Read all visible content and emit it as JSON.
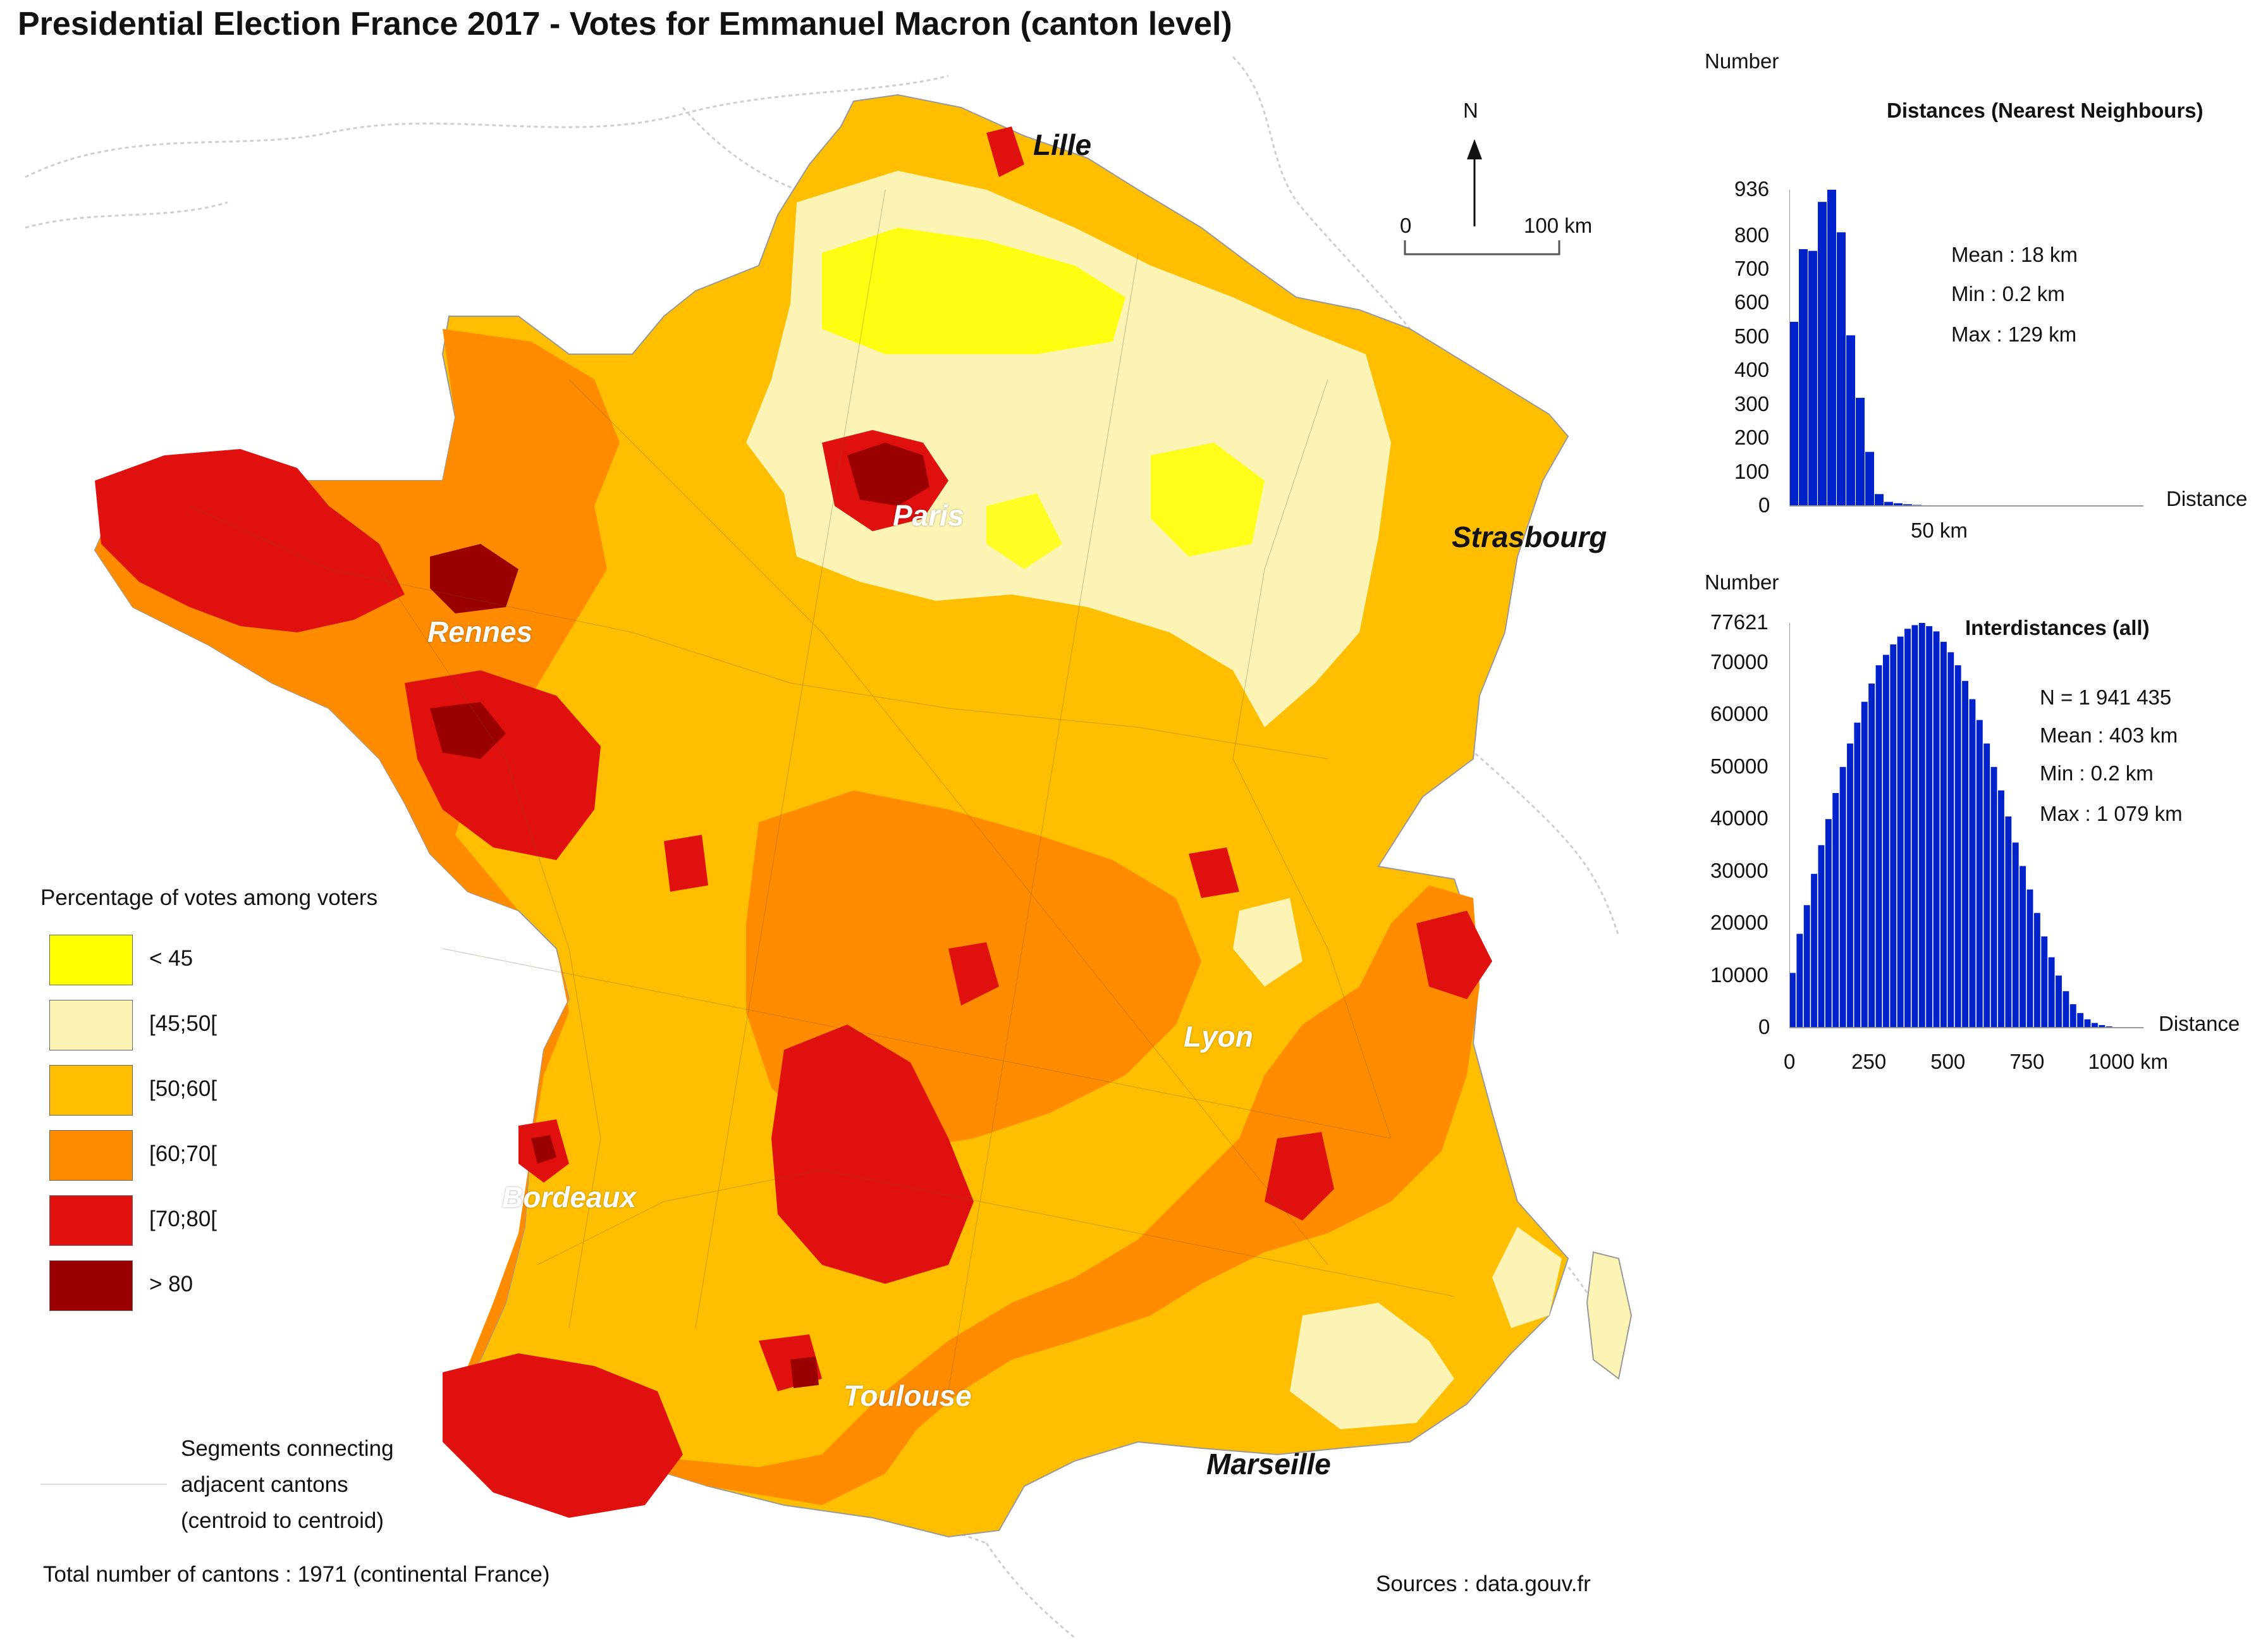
{
  "title": "Presidential Election France 2017 - Votes for Emmanuel Macron (canton level)",
  "colors": {
    "lt45": "#ffff00",
    "r45_50": "#fbf4b4",
    "r50_60": "#ffbf00",
    "r60_70": "#ff8c00",
    "r70_80": "#e0100f",
    "gt80": "#9a0000",
    "histogram_bars": "#0022cc"
  },
  "cities": {
    "lille": "Lille",
    "paris": "Paris",
    "strasbourg": "Strasbourg",
    "rennes": "Rennes",
    "lyon": "Lyon",
    "bordeaux": "Bordeaux",
    "toulouse": "Toulouse",
    "marseille": "Marseille"
  },
  "north_arrow": {
    "label": "N"
  },
  "scale_bar": {
    "start": "0",
    "end": "100 km"
  },
  "legend": {
    "title": "Percentage of votes among voters",
    "items": [
      {
        "label": "< 45",
        "color": "#ffff00"
      },
      {
        "label": "[45;50[",
        "color": "#fbf4b4"
      },
      {
        "label": "[50;60[",
        "color": "#ffbf00"
      },
      {
        "label": "[60;70[",
        "color": "#ff8c00"
      },
      {
        "label": "[70;80[",
        "color": "#e0100f"
      },
      {
        "label": "> 80",
        "color": "#9a0000"
      }
    ]
  },
  "segments_note": [
    "Segments connecting",
    "adjacent cantons",
    "(centroid to centroid)"
  ],
  "total_note": "Total number of cantons : 1971 (continental France)",
  "sources": "Sources : data.gouv.fr",
  "chart_data": [
    {
      "type": "bar",
      "title": "Distances (Nearest Neighbours)",
      "ylabel": "Number",
      "xlabel": "Distance",
      "x_tick_labels": [
        "50 km"
      ],
      "y_tick_labels": [
        "0",
        "100",
        "200",
        "300",
        "400",
        "500",
        "600",
        "700",
        "800",
        "936"
      ],
      "ylim": [
        0,
        936
      ],
      "values": [
        545,
        760,
        755,
        900,
        936,
        810,
        505,
        320,
        160,
        35,
        12,
        8,
        5,
        3,
        2,
        1
      ],
      "stats": [
        "Mean : 18 km",
        "Min : 0.2 km",
        "Max : 129 km"
      ],
      "legend": "none",
      "grid": false
    },
    {
      "type": "bar",
      "title": "Interdistances (all)",
      "ylabel": "Number",
      "xlabel": "Distance",
      "x_tick_labels": [
        "0",
        "250",
        "500",
        "750",
        "1000 km"
      ],
      "xlim": [
        0,
        1079
      ],
      "y_tick_labels": [
        "0",
        "10000",
        "20000",
        "30000",
        "40000",
        "50000",
        "60000",
        "70000",
        "77621"
      ],
      "ylim": [
        0,
        77621
      ],
      "values": [
        10500,
        18000,
        23500,
        29500,
        35000,
        40000,
        45000,
        50000,
        54500,
        58500,
        62500,
        66000,
        69500,
        71500,
        73500,
        75000,
        76500,
        77200,
        77621,
        77000,
        76000,
        74000,
        72000,
        69500,
        66500,
        63000,
        59000,
        54500,
        50000,
        45500,
        40500,
        35500,
        31000,
        26500,
        22000,
        17500,
        13500,
        10000,
        7000,
        4500,
        2800,
        1600,
        900,
        500,
        250,
        100
      ],
      "stats": [
        "N = 1 941 435",
        "Mean : 403 km",
        "Min : 0.2 km",
        "Max : 1 079 km"
      ],
      "legend": "none",
      "grid": false
    }
  ]
}
